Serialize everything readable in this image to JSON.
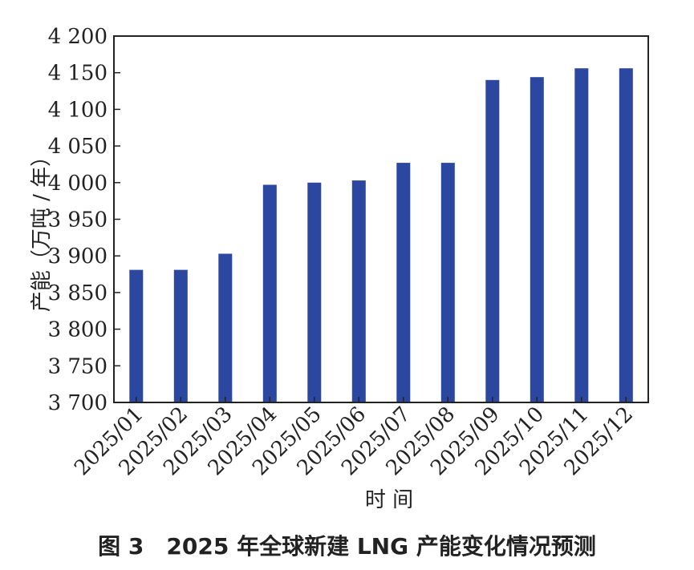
{
  "chart_data": {
    "type": "bar",
    "categories": [
      "2025/01",
      "2025/02",
      "2025/03",
      "2025/04",
      "2025/05",
      "2025/06",
      "2025/07",
      "2025/08",
      "2025/09",
      "2025/10",
      "2025/11",
      "2025/12"
    ],
    "values": [
      3881,
      3881,
      3903,
      3997,
      4000,
      4003,
      4027,
      4027,
      4140,
      4144,
      4156,
      4156
    ],
    "ylim": [
      3700,
      4200
    ],
    "yticks": [
      3700,
      3750,
      3800,
      3850,
      3900,
      3950,
      4000,
      4050,
      4100,
      4150,
      4200
    ],
    "ytick_labels": [
      "3 700",
      "3 750",
      "3 800",
      "3 850",
      "3 900",
      "3 950",
      "4 000",
      "4 050",
      "4 100",
      "4 150",
      "4 200"
    ],
    "xlabel": "时 间",
    "ylabel": "产能（万吨 / 年）",
    "bar_color": "#2b47a0",
    "grid": false,
    "legend": "none"
  },
  "caption": "图 3　2025 年全球新建 LNG 产能变化情况预测"
}
